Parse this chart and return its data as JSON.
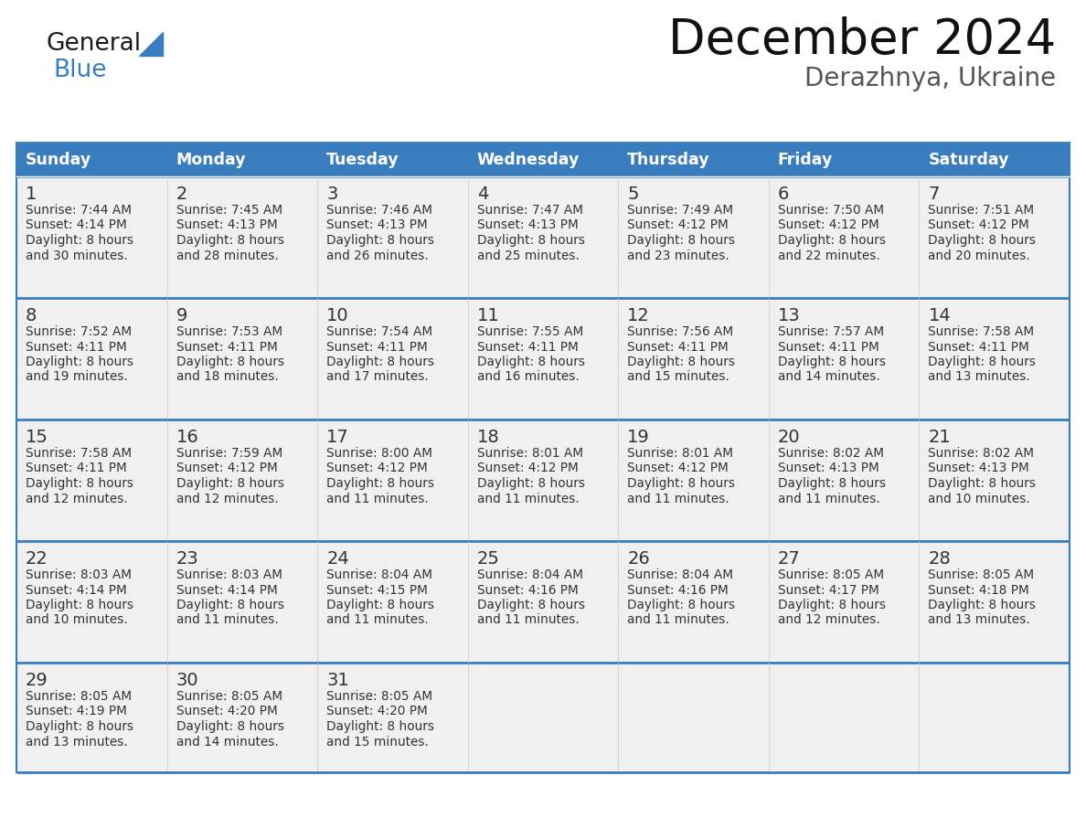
{
  "title": "December 2024",
  "subtitle": "Derazhnya, Ukraine",
  "header_bg_color": "#3a7dbf",
  "header_text_color": "#ffffff",
  "cell_bg_color": "#f0f0f0",
  "border_color": "#3a7dbf",
  "text_color": "#333333",
  "days_of_week": [
    "Sunday",
    "Monday",
    "Tuesday",
    "Wednesday",
    "Thursday",
    "Friday",
    "Saturday"
  ],
  "calendar_data": [
    [
      {
        "day": 1,
        "sunrise": "7:44 AM",
        "sunset": "4:14 PM",
        "daylight": "8 hours and 30 minutes"
      },
      {
        "day": 2,
        "sunrise": "7:45 AM",
        "sunset": "4:13 PM",
        "daylight": "8 hours and 28 minutes"
      },
      {
        "day": 3,
        "sunrise": "7:46 AM",
        "sunset": "4:13 PM",
        "daylight": "8 hours and 26 minutes"
      },
      {
        "day": 4,
        "sunrise": "7:47 AM",
        "sunset": "4:13 PM",
        "daylight": "8 hours and 25 minutes"
      },
      {
        "day": 5,
        "sunrise": "7:49 AM",
        "sunset": "4:12 PM",
        "daylight": "8 hours and 23 minutes"
      },
      {
        "day": 6,
        "sunrise": "7:50 AM",
        "sunset": "4:12 PM",
        "daylight": "8 hours and 22 minutes"
      },
      {
        "day": 7,
        "sunrise": "7:51 AM",
        "sunset": "4:12 PM",
        "daylight": "8 hours and 20 minutes"
      }
    ],
    [
      {
        "day": 8,
        "sunrise": "7:52 AM",
        "sunset": "4:11 PM",
        "daylight": "8 hours and 19 minutes"
      },
      {
        "day": 9,
        "sunrise": "7:53 AM",
        "sunset": "4:11 PM",
        "daylight": "8 hours and 18 minutes"
      },
      {
        "day": 10,
        "sunrise": "7:54 AM",
        "sunset": "4:11 PM",
        "daylight": "8 hours and 17 minutes"
      },
      {
        "day": 11,
        "sunrise": "7:55 AM",
        "sunset": "4:11 PM",
        "daylight": "8 hours and 16 minutes"
      },
      {
        "day": 12,
        "sunrise": "7:56 AM",
        "sunset": "4:11 PM",
        "daylight": "8 hours and 15 minutes"
      },
      {
        "day": 13,
        "sunrise": "7:57 AM",
        "sunset": "4:11 PM",
        "daylight": "8 hours and 14 minutes"
      },
      {
        "day": 14,
        "sunrise": "7:58 AM",
        "sunset": "4:11 PM",
        "daylight": "8 hours and 13 minutes"
      }
    ],
    [
      {
        "day": 15,
        "sunrise": "7:58 AM",
        "sunset": "4:11 PM",
        "daylight": "8 hours and 12 minutes"
      },
      {
        "day": 16,
        "sunrise": "7:59 AM",
        "sunset": "4:12 PM",
        "daylight": "8 hours and 12 minutes"
      },
      {
        "day": 17,
        "sunrise": "8:00 AM",
        "sunset": "4:12 PM",
        "daylight": "8 hours and 11 minutes"
      },
      {
        "day": 18,
        "sunrise": "8:01 AM",
        "sunset": "4:12 PM",
        "daylight": "8 hours and 11 minutes"
      },
      {
        "day": 19,
        "sunrise": "8:01 AM",
        "sunset": "4:12 PM",
        "daylight": "8 hours and 11 minutes"
      },
      {
        "day": 20,
        "sunrise": "8:02 AM",
        "sunset": "4:13 PM",
        "daylight": "8 hours and 11 minutes"
      },
      {
        "day": 21,
        "sunrise": "8:02 AM",
        "sunset": "4:13 PM",
        "daylight": "8 hours and 10 minutes"
      }
    ],
    [
      {
        "day": 22,
        "sunrise": "8:03 AM",
        "sunset": "4:14 PM",
        "daylight": "8 hours and 10 minutes"
      },
      {
        "day": 23,
        "sunrise": "8:03 AM",
        "sunset": "4:14 PM",
        "daylight": "8 hours and 11 minutes"
      },
      {
        "day": 24,
        "sunrise": "8:04 AM",
        "sunset": "4:15 PM",
        "daylight": "8 hours and 11 minutes"
      },
      {
        "day": 25,
        "sunrise": "8:04 AM",
        "sunset": "4:16 PM",
        "daylight": "8 hours and 11 minutes"
      },
      {
        "day": 26,
        "sunrise": "8:04 AM",
        "sunset": "4:16 PM",
        "daylight": "8 hours and 11 minutes"
      },
      {
        "day": 27,
        "sunrise": "8:05 AM",
        "sunset": "4:17 PM",
        "daylight": "8 hours and 12 minutes"
      },
      {
        "day": 28,
        "sunrise": "8:05 AM",
        "sunset": "4:18 PM",
        "daylight": "8 hours and 13 minutes"
      }
    ],
    [
      {
        "day": 29,
        "sunrise": "8:05 AM",
        "sunset": "4:19 PM",
        "daylight": "8 hours and 13 minutes"
      },
      {
        "day": 30,
        "sunrise": "8:05 AM",
        "sunset": "4:20 PM",
        "daylight": "8 hours and 14 minutes"
      },
      {
        "day": 31,
        "sunrise": "8:05 AM",
        "sunset": "4:20 PM",
        "daylight": "8 hours and 15 minutes"
      },
      null,
      null,
      null,
      null
    ]
  ],
  "logo_general_color": "#1a1a1a",
  "logo_blue_color": "#3a7dbf",
  "figsize": [
    11.88,
    9.18
  ],
  "dpi": 100
}
